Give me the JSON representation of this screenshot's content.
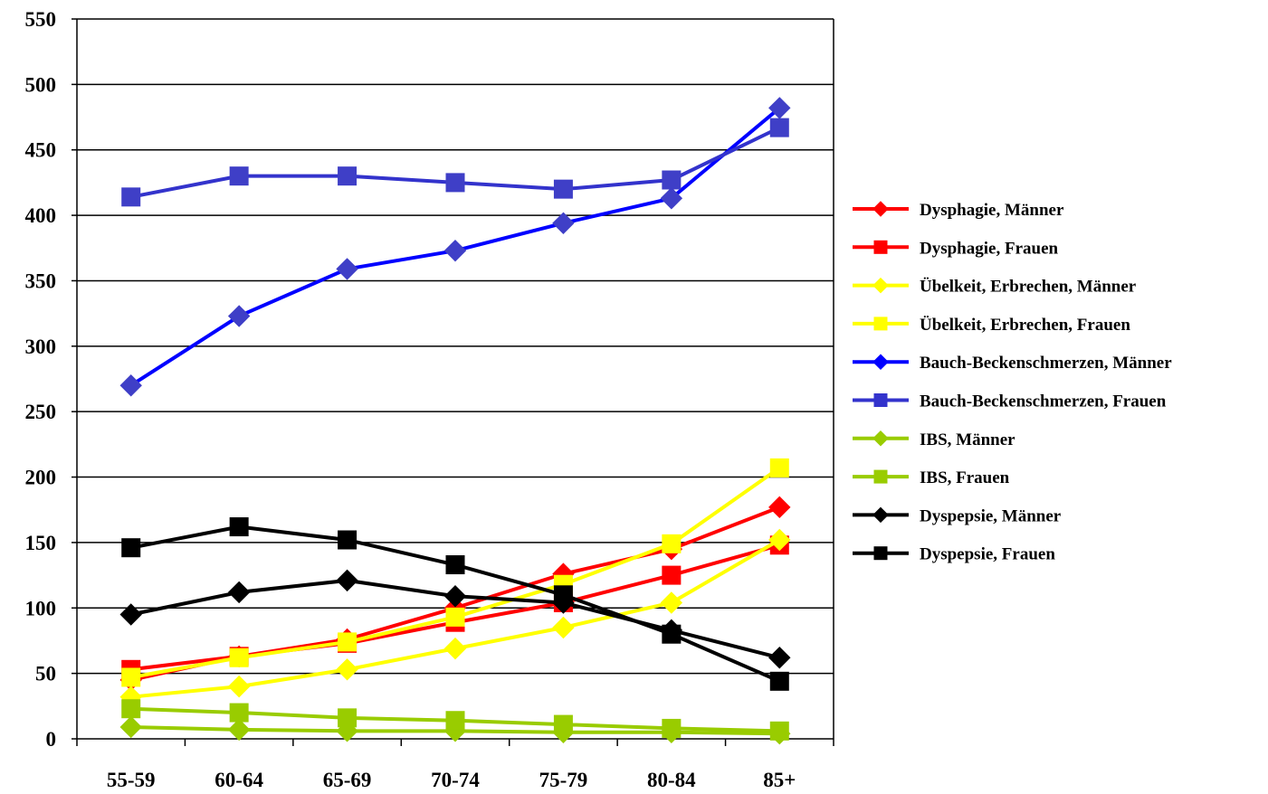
{
  "chart_data": {
    "type": "line",
    "title": "",
    "xlabel": "",
    "ylabel": "",
    "categories": [
      "55-59",
      "60-64",
      "65-69",
      "70-74",
      "75-79",
      "80-84",
      "85+"
    ],
    "ylim": [
      0,
      550
    ],
    "yticks": [
      0,
      50,
      100,
      150,
      200,
      250,
      300,
      350,
      400,
      450,
      500,
      550
    ],
    "grid": "horizontal",
    "legend_position": "right",
    "series": [
      {
        "name": "Dysphagie, Männer",
        "color": "#ff0000",
        "marker": "diamond",
        "values": [
          45,
          63,
          76,
          100,
          126,
          145,
          177
        ]
      },
      {
        "name": "Dysphagie, Frauen",
        "color": "#ff0000",
        "marker": "square",
        "values": [
          53,
          63,
          73,
          89,
          104,
          125,
          148
        ]
      },
      {
        "name": "Übelkeit, Erbrechen, Männer",
        "color": "#ffff00",
        "marker": "diamond",
        "values": [
          32,
          40,
          53,
          69,
          85,
          104,
          152
        ]
      },
      {
        "name": "Übelkeit, Erbrechen, Frauen",
        "color": "#ffff00",
        "marker": "square",
        "values": [
          47,
          62,
          74,
          93,
          118,
          149,
          207
        ]
      },
      {
        "name": "Bauch-Beckenschmerzen, Männer",
        "color": "#0000ff",
        "marker": "diamond",
        "values": [
          270,
          323,
          359,
          373,
          394,
          413,
          482
        ]
      },
      {
        "name": "Bauch-Beckenschmerzen, Frauen",
        "color": "#3333cc",
        "marker": "square",
        "values": [
          414,
          430,
          430,
          425,
          420,
          427,
          467
        ]
      },
      {
        "name": "IBS, Männer",
        "color": "#99cc00",
        "marker": "diamond",
        "values": [
          9,
          7,
          6,
          6,
          5,
          5,
          4
        ]
      },
      {
        "name": "IBS, Frauen",
        "color": "#99cc00",
        "marker": "square",
        "values": [
          23,
          20,
          16,
          14,
          11,
          8,
          6
        ]
      },
      {
        "name": "Dyspepsie, Männer",
        "color": "#000000",
        "marker": "diamond",
        "values": [
          95,
          112,
          121,
          109,
          104,
          83,
          62
        ]
      },
      {
        "name": "Dyspepsie, Frauen",
        "color": "#000000",
        "marker": "square",
        "values": [
          146,
          162,
          152,
          133,
          110,
          80,
          44
        ]
      }
    ],
    "marker_fill": {
      "diamond": "#4040c0",
      "square": "#4040c0"
    }
  }
}
